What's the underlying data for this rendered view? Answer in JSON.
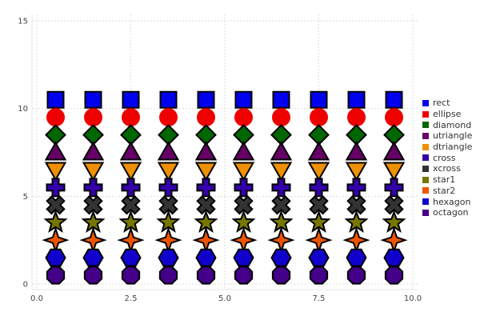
{
  "chart_data": {
    "type": "scatter",
    "xlim": [
      0,
      10
    ],
    "ylim": [
      0,
      15
    ],
    "x_ticks": [
      "0.0",
      "2.5",
      "5.0",
      "7.5",
      "10.0"
    ],
    "x_tick_values": [
      0,
      2.5,
      5,
      7.5,
      10
    ],
    "y_ticks": [
      "0",
      "5",
      "10",
      "15"
    ],
    "y_tick_values": [
      0,
      5,
      10,
      15
    ],
    "grid": true,
    "legend_position": "right",
    "x": [
      0.5,
      1.5,
      2.5,
      3.5,
      4.5,
      5.5,
      6.5,
      7.5,
      8.5,
      9.5
    ],
    "series": [
      {
        "name": "rect",
        "marker": "rect",
        "y": 10.5,
        "color": "#0000ee"
      },
      {
        "name": "ellipse",
        "marker": "ellipse",
        "y": 9.5,
        "color": "#ee0000"
      },
      {
        "name": "diamond",
        "marker": "diamond",
        "y": 8.5,
        "color": "#006600"
      },
      {
        "name": "utriangle",
        "marker": "utriangle",
        "y": 7.5,
        "color": "#660066"
      },
      {
        "name": "dtriangle",
        "marker": "dtriangle",
        "y": 6.5,
        "color": "#ee9000"
      },
      {
        "name": "cross",
        "marker": "cross",
        "y": 5.5,
        "color": "#3300aa"
      },
      {
        "name": "xcross",
        "marker": "xcross",
        "y": 4.5,
        "color": "#333333"
      },
      {
        "name": "star1",
        "marker": "star1",
        "y": 3.5,
        "color": "#777700"
      },
      {
        "name": "star2",
        "marker": "star2",
        "y": 2.5,
        "color": "#ee5500"
      },
      {
        "name": "hexagon",
        "marker": "hexagon",
        "y": 1.5,
        "color": "#1100cc"
      },
      {
        "name": "octagon",
        "marker": "octagon",
        "y": 0.5,
        "color": "#440088"
      }
    ]
  }
}
